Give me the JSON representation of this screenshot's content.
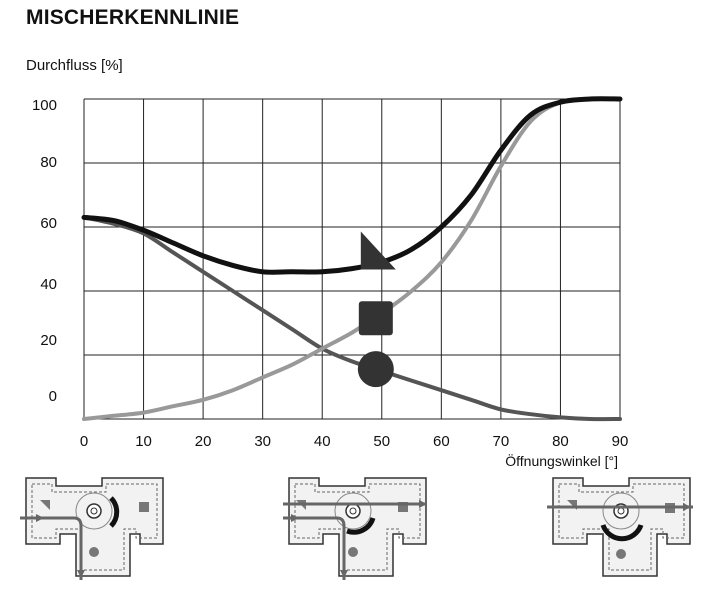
{
  "title": "MISCHERKENNLINIE",
  "chart_data": {
    "type": "line",
    "title": "MISCHERKENNLINIE",
    "ylabel": "Durchfluss [%]",
    "xlabel": "Öffnungswinkel [°]",
    "xlim": [
      0,
      90
    ],
    "ylim": [
      0,
      100
    ],
    "x_ticks": [
      "0",
      "10",
      "20",
      "30",
      "40",
      "50",
      "60",
      "70",
      "80",
      "90"
    ],
    "y_ticks": [
      "0",
      "20",
      "40",
      "60",
      "80",
      "100"
    ],
    "grid": true,
    "x": [
      0,
      5,
      10,
      15,
      20,
      25,
      30,
      35,
      40,
      45,
      50,
      55,
      60,
      65,
      70,
      75,
      80,
      85,
      90
    ],
    "series": [
      {
        "marker": "triangle",
        "color": "#111111",
        "values": [
          63,
          62,
          59,
          55,
          51,
          48,
          46,
          46,
          46,
          47,
          49,
          53,
          60,
          70,
          84,
          95,
          99,
          100,
          100
        ]
      },
      {
        "marker": "square",
        "color": "#999999",
        "values": [
          0,
          1,
          2,
          4,
          6,
          9,
          13,
          17,
          22,
          27,
          33,
          40,
          49,
          62,
          79,
          93,
          99,
          100,
          100
        ]
      },
      {
        "marker": "circle",
        "color": "#555555",
        "values": [
          63,
          61,
          58,
          52,
          46,
          40,
          34,
          28,
          22,
          18,
          15,
          12,
          9,
          6,
          3,
          1.5,
          0.5,
          0,
          0
        ]
      }
    ],
    "markers_at_x": 49
  }
}
